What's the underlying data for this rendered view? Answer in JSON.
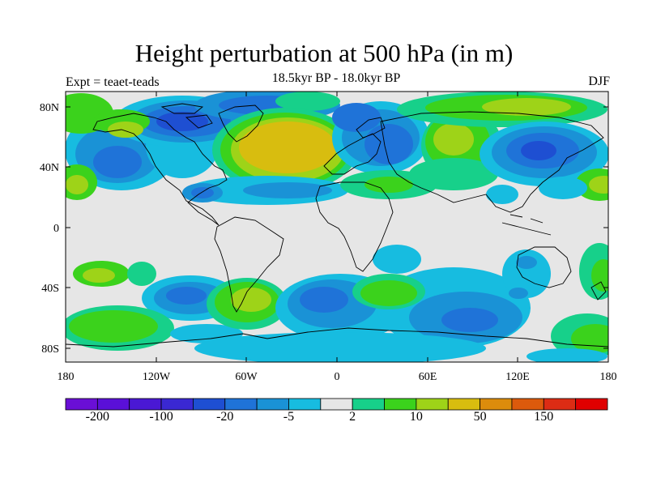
{
  "title": "Height perturbation at 500 hPa (in m)",
  "subtitle": "18.5kyr BP - 18.0kyr BP",
  "left_label": "Expt = teaet-teads",
  "right_label": "DJF",
  "colors": {
    "background": "#e6e6e6",
    "palette": [
      "#6a0fd6",
      "#5a10d8",
      "#4a18d4",
      "#3a28d2",
      "#1e4fd2",
      "#1f73d8",
      "#1a92d6",
      "#17bce0",
      "#e6e6e6",
      "#17d08a",
      "#3bd21c",
      "#9ed318",
      "#d8bd0f",
      "#dc8c0c",
      "#dc5a0c",
      "#dc2c14",
      "#e00000"
    ]
  },
  "chart_data": {
    "type": "heatmap",
    "lon_ticks": [
      "180",
      "120W",
      "60W",
      "0",
      "60E",
      "120E",
      "180"
    ],
    "lat_ticks": [
      "80N",
      "40N",
      "0",
      "40S",
      "80S"
    ],
    "colorbar_labels": [
      "-200",
      "-100",
      "-20",
      "-5",
      "2",
      "10",
      "50",
      "150"
    ],
    "regions": [
      {
        "lon": -140,
        "lat": 45,
        "value": -20
      },
      {
        "lon": -120,
        "lat": 65,
        "value": -5
      },
      {
        "lon": -90,
        "lat": 70,
        "value": -50
      },
      {
        "lon": -35,
        "lat": 50,
        "value": 50
      },
      {
        "lon": 25,
        "lat": 65,
        "value": -20
      },
      {
        "lon": 40,
        "lat": 45,
        "value": -10
      },
      {
        "lon": 80,
        "lat": 55,
        "value": 10
      },
      {
        "lon": 130,
        "lat": 50,
        "value": -20
      },
      {
        "lon": 140,
        "lat": 75,
        "value": 10
      },
      {
        "lon": -180,
        "lat": 30,
        "value": 10
      },
      {
        "lon": 160,
        "lat": 30,
        "value": 10
      },
      {
        "lon": -120,
        "lat": -45,
        "value": -20
      },
      {
        "lon": -165,
        "lat": -60,
        "value": 10
      },
      {
        "lon": -145,
        "lat": -30,
        "value": 5
      },
      {
        "lon": -50,
        "lat": -45,
        "value": 10
      },
      {
        "lon": -20,
        "lat": -60,
        "value": -20
      },
      {
        "lon": 30,
        "lat": -45,
        "value": 10
      },
      {
        "lon": 60,
        "lat": -65,
        "value": -20
      },
      {
        "lon": 100,
        "lat": -45,
        "value": -5
      },
      {
        "lon": 160,
        "lat": -65,
        "value": 10
      },
      {
        "lon": 130,
        "lat": -25,
        "value": -5
      }
    ]
  }
}
